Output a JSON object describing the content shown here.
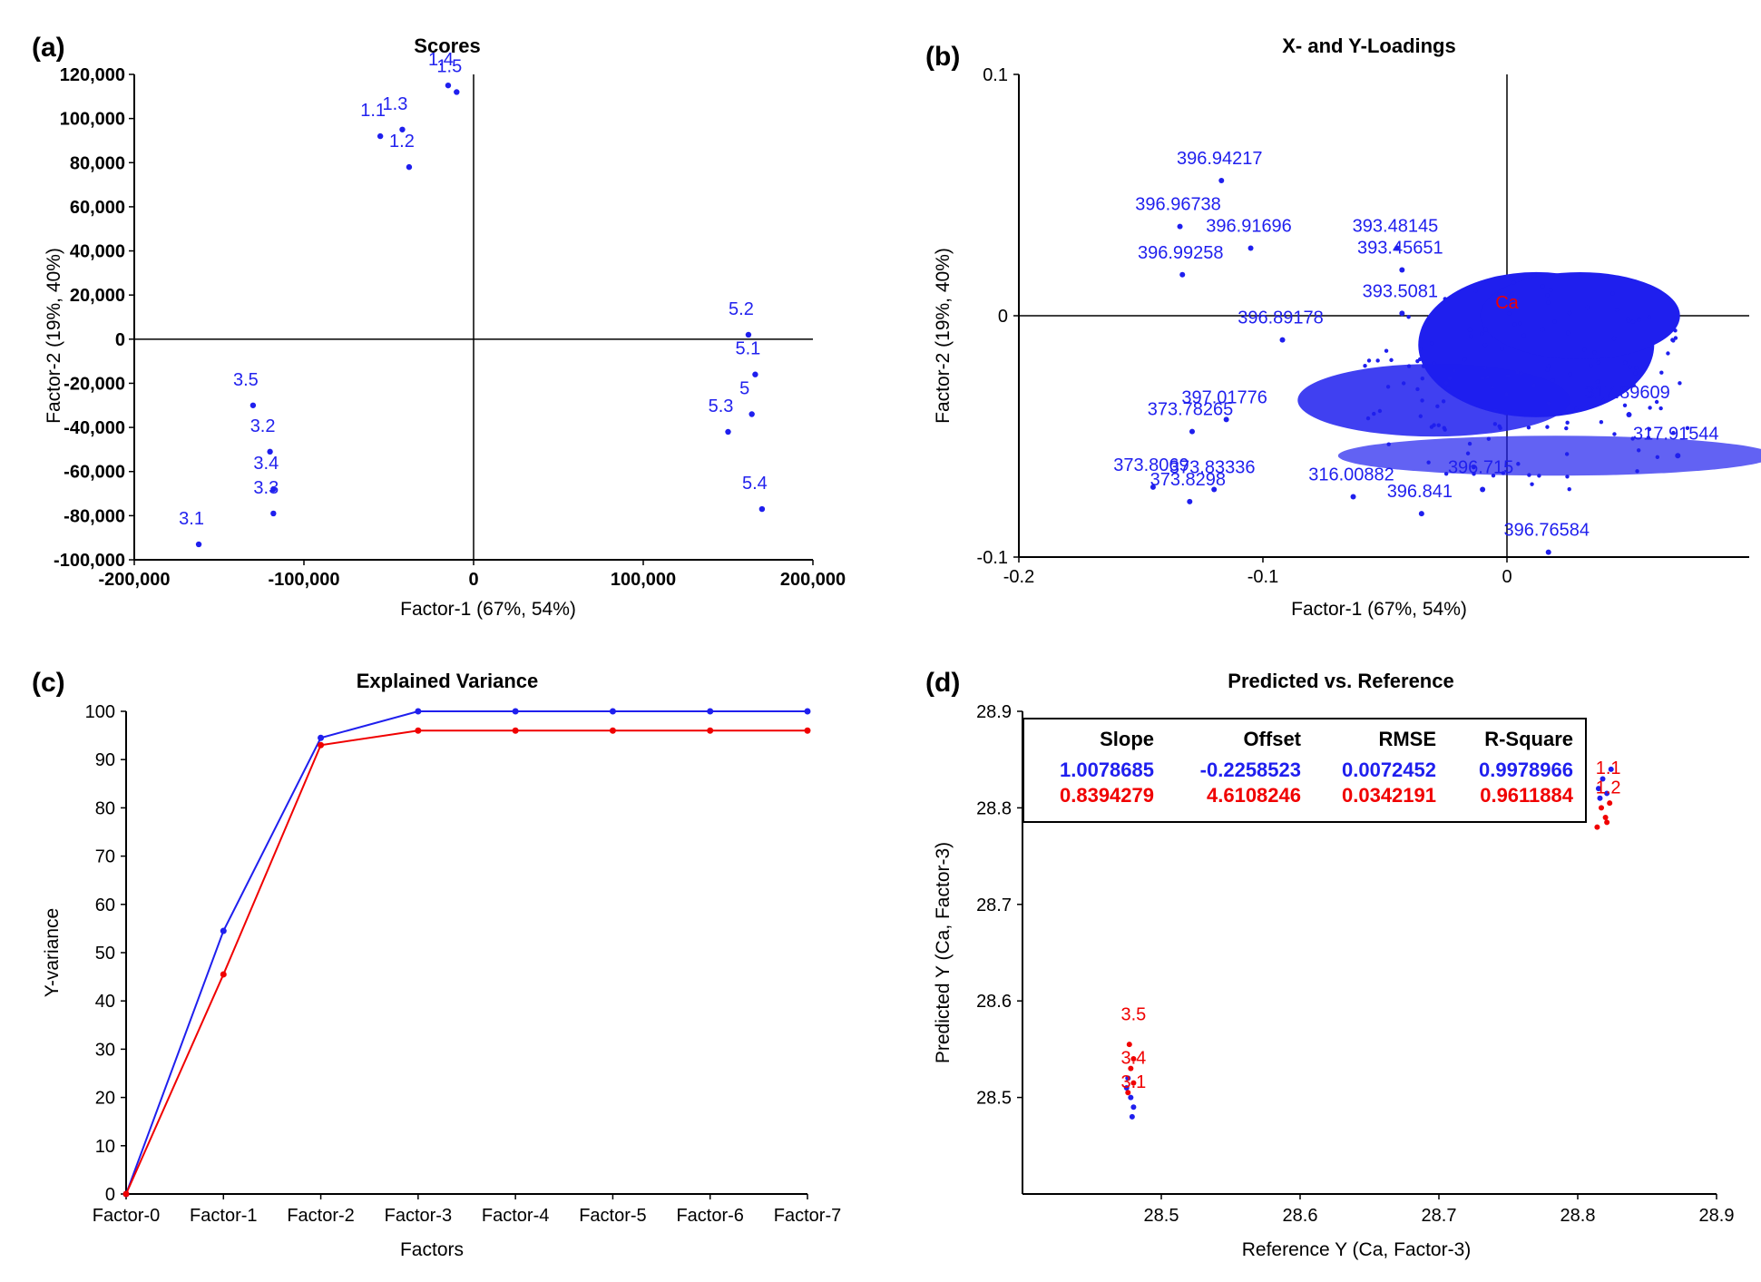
{
  "colors": {
    "blue": "#1f1fee",
    "red": "#f00000",
    "axis": "#000000"
  },
  "chart_data": [
    {
      "panel": "(a)",
      "type": "scatter",
      "title": "Scores",
      "xlabel": "Factor-1 (67%, 54%)",
      "ylabel": "Factor-2 (19%, 40%)",
      "xlim": [
        -200000,
        200000
      ],
      "ylim": [
        -100000,
        120000
      ],
      "xticks": [
        "-200,000",
        "-100,000",
        "0",
        "100,000",
        "200,000"
      ],
      "yticks": [
        "120,000",
        "100,000",
        "80,000",
        "60,000",
        "40,000",
        "20,000",
        "0",
        "-20,000",
        "-40,000",
        "-60,000",
        "-80,000",
        "-100,000"
      ],
      "points": [
        {
          "label": "1.1",
          "x": -55000,
          "y": 92000
        },
        {
          "label": "1.2",
          "x": -38000,
          "y": 78000
        },
        {
          "label": "1.3",
          "x": -42000,
          "y": 95000
        },
        {
          "label": "1.4",
          "x": -15000,
          "y": 115000
        },
        {
          "label": "1.5",
          "x": -10000,
          "y": 112000
        },
        {
          "label": "5.2",
          "x": 162000,
          "y": 2000
        },
        {
          "label": "5.1",
          "x": 166000,
          "y": -16000
        },
        {
          "label": "5",
          "x": 164000,
          "y": -34000
        },
        {
          "label": "5.3",
          "x": 150000,
          "y": -42000
        },
        {
          "label": "5.4",
          "x": 170000,
          "y": -77000
        },
        {
          "label": "3.5",
          "x": -130000,
          "y": -30000
        },
        {
          "label": "3.2",
          "x": -120000,
          "y": -51000
        },
        {
          "label": "3.4",
          "x": -118000,
          "y": -68000
        },
        {
          "label": "3.3",
          "x": -118000,
          "y": -79000
        },
        {
          "label": "3.1",
          "x": -162000,
          "y": -93000
        }
      ]
    },
    {
      "panel": "(b)",
      "type": "scatter",
      "title": "X- and Y-Loadings",
      "xlabel": "Factor-1 (67%, 54%)",
      "ylabel": "Factor-2 (19%, 40%)",
      "xlim": [
        -0.2,
        0.1
      ],
      "ylim": [
        -0.1,
        0.1
      ],
      "xticks": [
        "-0.2",
        "-0.1",
        "0"
      ],
      "yticks": [
        "0.1",
        "0",
        "-0.1"
      ],
      "labeled_points": [
        {
          "label": "396.94217",
          "x": -0.117,
          "y": 0.056
        },
        {
          "label": "396.96738",
          "x": -0.134,
          "y": 0.037
        },
        {
          "label": "396.91696",
          "x": -0.105,
          "y": 0.028
        },
        {
          "label": "396.99258",
          "x": -0.133,
          "y": 0.017
        },
        {
          "label": "393.48145",
          "x": -0.045,
          "y": 0.028
        },
        {
          "label": "393.45651",
          "x": -0.043,
          "y": 0.019
        },
        {
          "label": "393.5081",
          "x": -0.043,
          "y": 0.001
        },
        {
          "label": "396.89178",
          "x": -0.092,
          "y": -0.01
        },
        {
          "label": "397.01776",
          "x": -0.115,
          "y": -0.043
        },
        {
          "label": "373.78265",
          "x": -0.129,
          "y": -0.048
        },
        {
          "label": "373.8069",
          "x": -0.145,
          "y": -0.071
        },
        {
          "label": "373.83336",
          "x": -0.12,
          "y": -0.072
        },
        {
          "label": "373.8298",
          "x": -0.13,
          "y": -0.077
        },
        {
          "label": "316.00882",
          "x": -0.063,
          "y": -0.075
        },
        {
          "label": "396.841",
          "x": -0.035,
          "y": -0.082
        },
        {
          "label": "396.715",
          "x": -0.01,
          "y": -0.072
        },
        {
          "label": "396.76584",
          "x": 0.017,
          "y": -0.098
        },
        {
          "label": "317.89609",
          "x": 0.05,
          "y": -0.041
        },
        {
          "label": "317.91544",
          "x": 0.07,
          "y": -0.058
        },
        {
          "label": "Ca",
          "x": 0.0,
          "y": 0.0,
          "color": "red"
        }
      ]
    },
    {
      "panel": "(c)",
      "type": "line",
      "title": "Explained Variance",
      "xlabel": "Factors",
      "ylabel": "Y-variance",
      "categories": [
        "Factor-0",
        "Factor-1",
        "Factor-2",
        "Factor-3",
        "Factor-4",
        "Factor-5",
        "Factor-6",
        "Factor-7"
      ],
      "ylim": [
        0,
        100
      ],
      "yticks": [
        "0",
        "10",
        "20",
        "30",
        "40",
        "50",
        "60",
        "70",
        "80",
        "90",
        "100"
      ],
      "series": [
        {
          "color": "blue",
          "values": [
            0,
            54.5,
            94.5,
            100,
            100,
            100,
            100,
            100
          ]
        },
        {
          "color": "red",
          "values": [
            0,
            45.5,
            93,
            96,
            96,
            96,
            96,
            96
          ]
        }
      ]
    },
    {
      "panel": "(d)",
      "type": "scatter",
      "title": "Predicted vs. Reference",
      "xlabel": "Reference Y (Ca, Factor-3)",
      "ylabel": "Predicted Y (Ca, Factor-3)",
      "xlim": [
        28.4,
        28.9
      ],
      "ylim": [
        28.4,
        28.9
      ],
      "xticks": [
        "28.5",
        "28.6",
        "28.7",
        "28.8",
        "28.9"
      ],
      "yticks": [
        "28.9",
        "28.8",
        "28.7",
        "28.6",
        "28.5"
      ],
      "stats_table": {
        "headers": [
          "Slope",
          "Offset",
          "RMSE",
          "R-Square"
        ],
        "rows": [
          {
            "color": "blue",
            "values": [
              "1.0078685",
              "-0.2258523",
              "0.0072452",
              "0.9978966"
            ]
          },
          {
            "color": "red",
            "values": [
              "0.8394279",
              "4.6108246",
              "0.0342191",
              "0.9611884"
            ]
          }
        ]
      },
      "group_labels": [
        {
          "label": "3.5",
          "x": 28.48,
          "y": 28.58
        },
        {
          "label": "3.4",
          "x": 28.48,
          "y": 28.535
        },
        {
          "label": "3.1",
          "x": 28.48,
          "y": 28.51
        },
        {
          "label": "1.1",
          "x": 28.822,
          "y": 28.835
        },
        {
          "label": "1.2",
          "x": 28.822,
          "y": 28.815
        }
      ]
    }
  ]
}
